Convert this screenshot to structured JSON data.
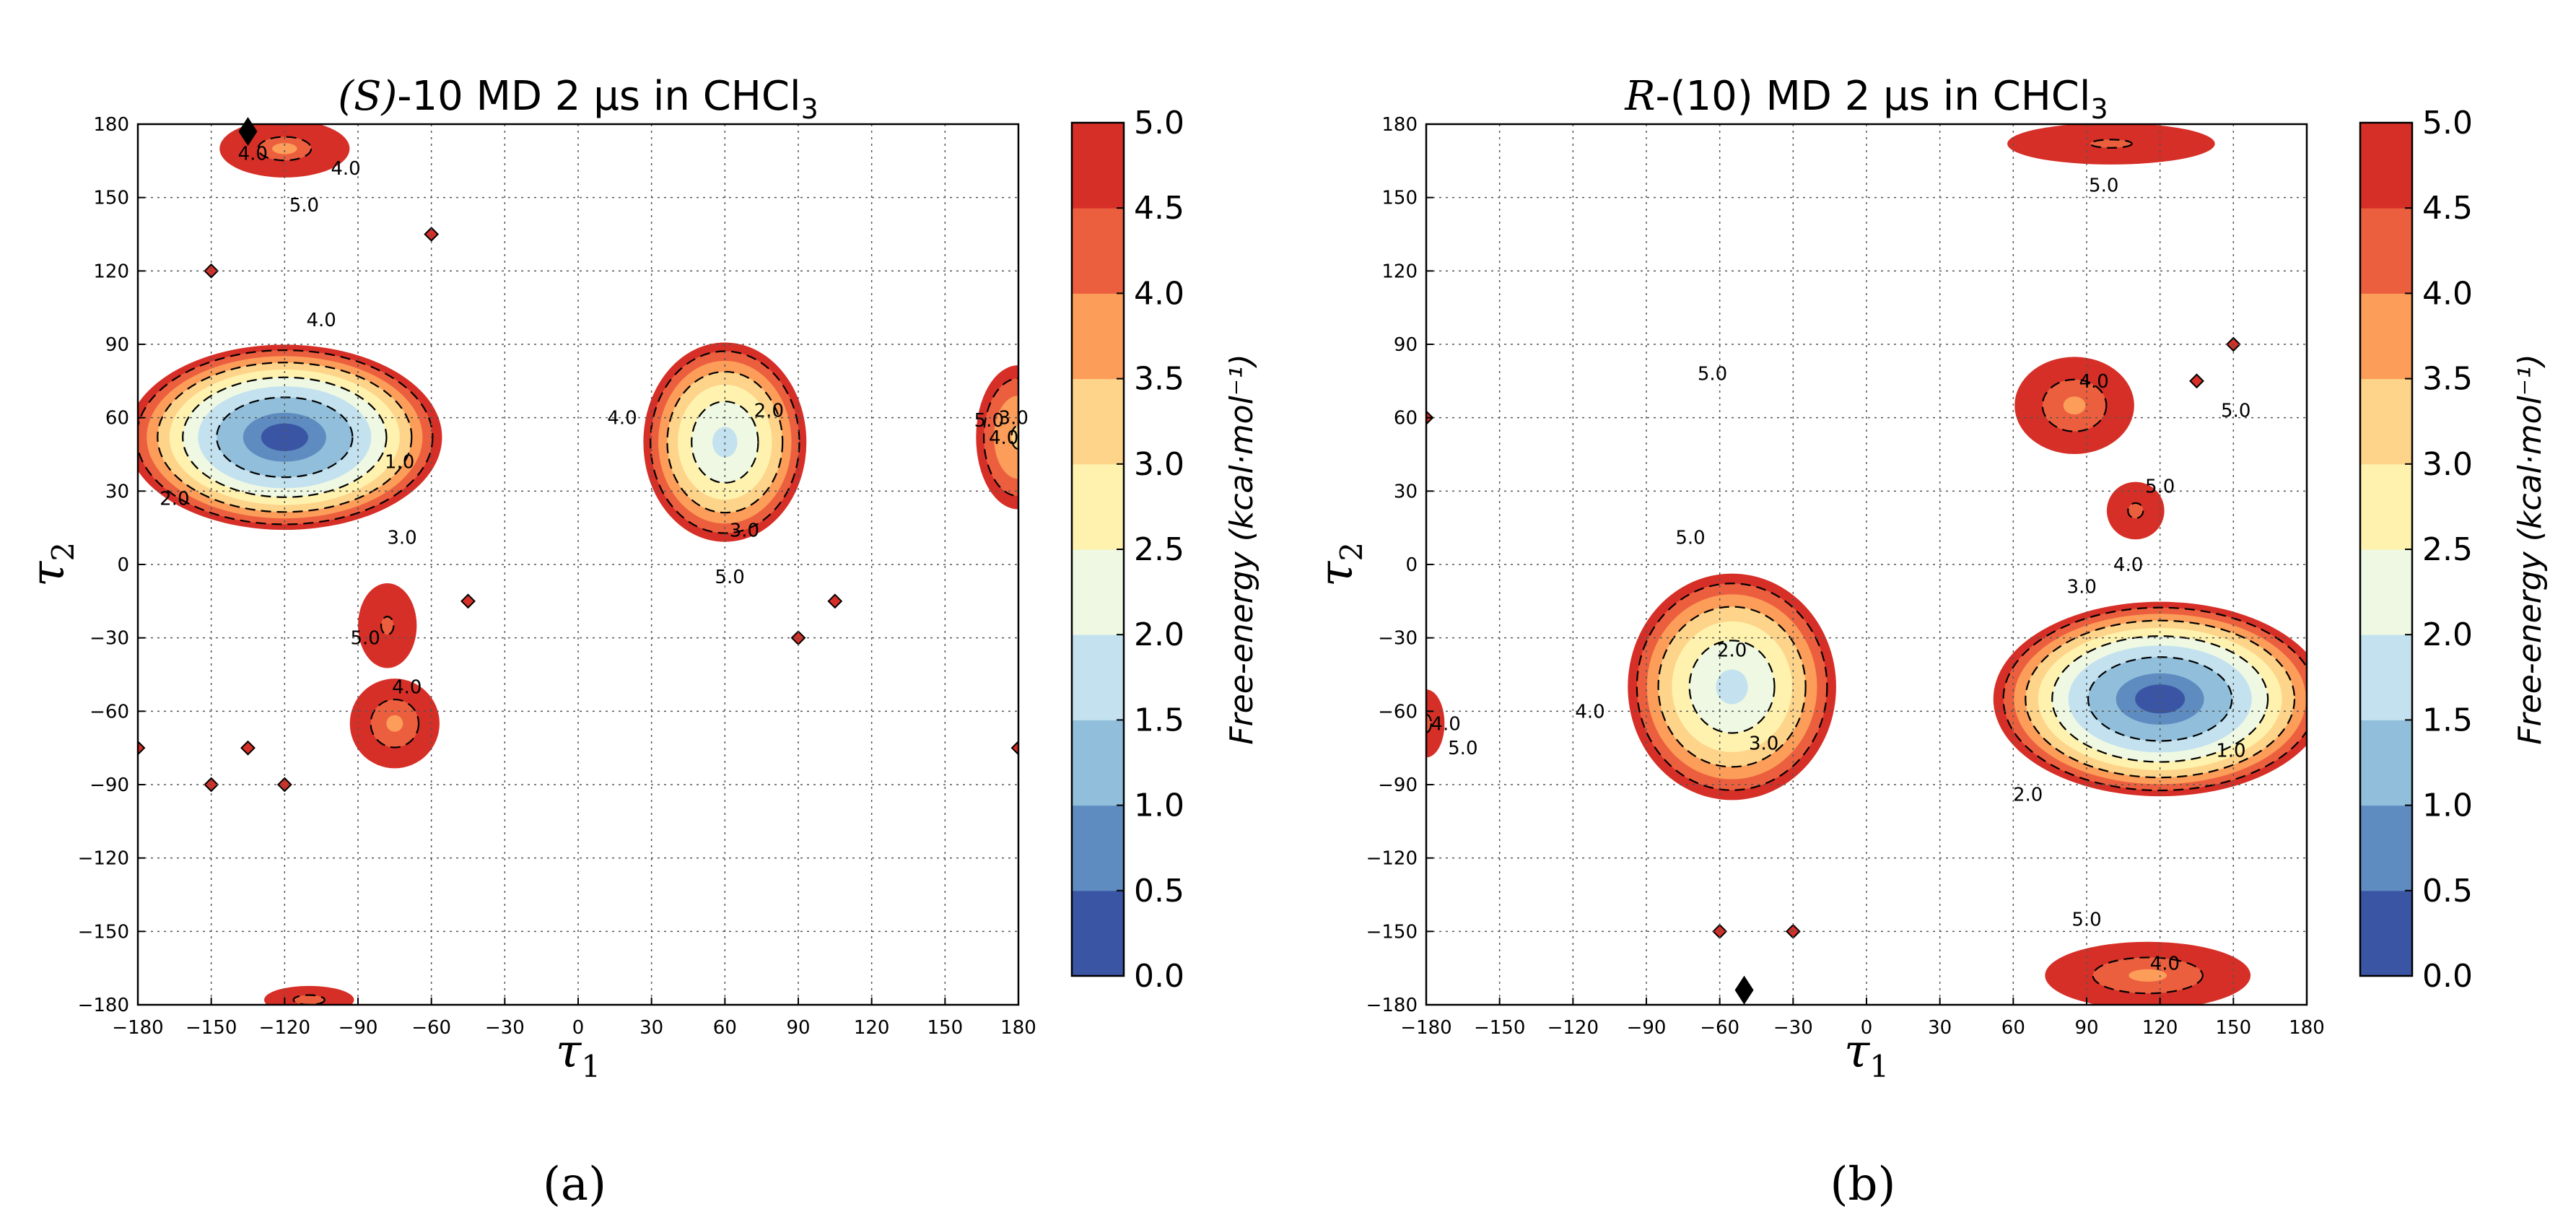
{
  "chart_data": [
    {
      "type": "heatmap",
      "subtype": "filled-contour",
      "panel_label": "(a)",
      "title": "(S)-10 MD 2 μs in CHCl3",
      "title_parts": {
        "prefix_italic": "(S)",
        "rest": "-10 MD 2 μs in CHCl",
        "subscript": "3"
      },
      "xlabel": "τ1",
      "ylabel": "τ2",
      "xlim": [
        -180,
        180
      ],
      "ylim": [
        -180,
        180
      ],
      "xticks": [
        -180,
        -150,
        -120,
        -90,
        -60,
        -30,
        0,
        30,
        60,
        90,
        120,
        150,
        180
      ],
      "yticks": [
        -180,
        -150,
        -120,
        -90,
        -60,
        -30,
        0,
        30,
        60,
        90,
        120,
        150,
        180
      ],
      "grid": true,
      "colorbar": {
        "label": "Free-energy (kcal·mol⁻¹)",
        "levels": [
          0.0,
          0.5,
          1.0,
          1.5,
          2.0,
          2.5,
          3.0,
          3.5,
          4.0,
          4.5,
          5.0
        ],
        "tick_labels": [
          "0.0",
          "0.5",
          "1.0",
          "1.5",
          "2.0",
          "2.5",
          "3.0",
          "3.5",
          "4.0",
          "4.5",
          "5.0"
        ],
        "colors": [
          "#3a55a4",
          "#5e8cc0",
          "#91bfdb",
          "#c3e1ee",
          "#eef8e3",
          "#fff2ae",
          "#fdd48a",
          "#fc9d59",
          "#ec5f3e",
          "#d62f27"
        ]
      },
      "basins": [
        {
          "name": "global minimum",
          "center": [
            -120,
            52
          ],
          "rx": 68,
          "ry": 40,
          "min_energy": 0.2
        },
        {
          "name": "upper-left band",
          "center": [
            -120,
            170
          ],
          "rx": 36,
          "ry": 16,
          "min_energy": 3.9
        },
        {
          "name": "bottom-left band",
          "center": [
            -110,
            -178
          ],
          "rx": 45,
          "ry": 14,
          "min_energy": 4.4
        },
        {
          "name": "neck",
          "center": [
            -78,
            -25
          ],
          "rx": 18,
          "ry": 26,
          "min_energy": 4.1
        },
        {
          "name": "lower lobe",
          "center": [
            -75,
            -65
          ],
          "rx": 24,
          "ry": 24,
          "min_energy": 3.8
        },
        {
          "name": "right basin",
          "center": [
            60,
            50
          ],
          "rx": 36,
          "ry": 44,
          "min_energy": 1.5
        },
        {
          "name": "right edge",
          "center": [
            180,
            52
          ],
          "rx": 20,
          "ry": 34,
          "min_energy": 3.0
        }
      ],
      "contour_labels": [
        {
          "text": "4.0",
          "at": [
            -133,
            168
          ]
        },
        {
          "text": "4.0",
          "at": [
            -95,
            162
          ]
        },
        {
          "text": "5.0",
          "at": [
            -112,
            147
          ]
        },
        {
          "text": "4.0",
          "at": [
            -105,
            100
          ]
        },
        {
          "text": "1.0",
          "at": [
            -73,
            42
          ]
        },
        {
          "text": "2.0",
          "at": [
            -165,
            27
          ]
        },
        {
          "text": "3.0",
          "at": [
            -72,
            11
          ]
        },
        {
          "text": "5.0",
          "at": [
            -87,
            -30
          ]
        },
        {
          "text": "4.0",
          "at": [
            -70,
            -50
          ]
        },
        {
          "text": "4.0",
          "at": [
            18,
            60
          ]
        },
        {
          "text": "2.0",
          "at": [
            78,
            63
          ]
        },
        {
          "text": "3.0",
          "at": [
            68,
            14
          ]
        },
        {
          "text": "5.0",
          "at": [
            62,
            -5
          ]
        },
        {
          "text": "5.0",
          "at": [
            168,
            59
          ]
        },
        {
          "text": "3.0",
          "at": [
            178,
            60
          ]
        },
        {
          "text": "4.0",
          "at": [
            174,
            52
          ]
        }
      ],
      "marker": {
        "shape": "diamond",
        "at": [
          -135,
          177
        ]
      },
      "isolated_points": [
        [
          -60,
          135
        ],
        [
          -150,
          120
        ],
        [
          -45,
          -15
        ],
        [
          105,
          -15
        ],
        [
          90,
          -30
        ],
        [
          -135,
          -75
        ],
        [
          -150,
          -90
        ],
        [
          -120,
          -90
        ],
        [
          -180,
          -75
        ],
        [
          180,
          -75
        ]
      ]
    },
    {
      "type": "heatmap",
      "subtype": "filled-contour",
      "panel_label": "(b)",
      "title": "R-(10) MD 2 μs in CHCl3",
      "title_parts": {
        "prefix_italic": "R",
        "rest": "-(10) MD 2 μs in CHCl",
        "subscript": "3"
      },
      "xlabel": "τ1",
      "ylabel": "τ2",
      "xlim": [
        -180,
        180
      ],
      "ylim": [
        -180,
        180
      ],
      "xticks": [
        -180,
        -150,
        -120,
        -90,
        -60,
        -30,
        0,
        30,
        60,
        90,
        120,
        150,
        180
      ],
      "yticks": [
        -180,
        -150,
        -120,
        -90,
        -60,
        -30,
        0,
        30,
        60,
        90,
        120,
        150,
        180
      ],
      "grid": true,
      "colorbar": {
        "label": "Free-energy (kcal·mol⁻¹)",
        "levels": [
          0.0,
          0.5,
          1.0,
          1.5,
          2.0,
          2.5,
          3.0,
          3.5,
          4.0,
          4.5,
          5.0
        ],
        "tick_labels": [
          "0.0",
          "0.5",
          "1.0",
          "1.5",
          "2.0",
          "2.5",
          "3.0",
          "3.5",
          "4.0",
          "4.5",
          "5.0"
        ],
        "colors": [
          "#3a55a4",
          "#5e8cc0",
          "#91bfdb",
          "#c3e1ee",
          "#eef8e3",
          "#fff2ae",
          "#fdd48a",
          "#fc9d59",
          "#ec5f3e",
          "#d62f27"
        ]
      },
      "basins": [
        {
          "name": "global minimum",
          "center": [
            120,
            -55
          ],
          "rx": 72,
          "ry": 42,
          "min_energy": 0.2
        },
        {
          "name": "left basin",
          "center": [
            -55,
            -50
          ],
          "rx": 46,
          "ry": 50,
          "min_energy": 1.5
        },
        {
          "name": "upper-right lobe",
          "center": [
            85,
            65
          ],
          "rx": 32,
          "ry": 26,
          "min_energy": 3.8
        },
        {
          "name": "bridge",
          "center": [
            110,
            22
          ],
          "rx": 22,
          "ry": 22,
          "min_energy": 4.3
        },
        {
          "name": "top band",
          "center": [
            100,
            172
          ],
          "rx": 60,
          "ry": 12,
          "min_energy": 4.0
        },
        {
          "name": "bottom band",
          "center": [
            115,
            -168
          ],
          "rx": 55,
          "ry": 18,
          "min_energy": 3.8
        },
        {
          "name": "left edge",
          "center": [
            -180,
            -65
          ],
          "rx": 14,
          "ry": 26,
          "min_energy": 4.3
        }
      ],
      "contour_labels": [
        {
          "text": "5.0",
          "at": [
            97,
            155
          ]
        },
        {
          "text": "5.0",
          "at": [
            -63,
            78
          ]
        },
        {
          "text": "4.0",
          "at": [
            93,
            75
          ]
        },
        {
          "text": "5.0",
          "at": [
            151,
            63
          ]
        },
        {
          "text": "5.0",
          "at": [
            120,
            32
          ]
        },
        {
          "text": "5.0",
          "at": [
            -72,
            11
          ]
        },
        {
          "text": "4.0",
          "at": [
            107,
            0
          ]
        },
        {
          "text": "3.0",
          "at": [
            88,
            -9
          ]
        },
        {
          "text": "2.0",
          "at": [
            -55,
            -35
          ]
        },
        {
          "text": "4.0",
          "at": [
            -113,
            -60
          ]
        },
        {
          "text": "3.0",
          "at": [
            -42,
            -73
          ]
        },
        {
          "text": "1.0",
          "at": [
            149,
            -76
          ]
        },
        {
          "text": "2.0",
          "at": [
            66,
            -94
          ]
        },
        {
          "text": "4.0",
          "at": [
            -172,
            -65
          ]
        },
        {
          "text": "5.0",
          "at": [
            -165,
            -75
          ]
        },
        {
          "text": "5.0",
          "at": [
            90,
            -145
          ]
        },
        {
          "text": "4.0",
          "at": [
            122,
            -163
          ]
        }
      ],
      "marker": {
        "shape": "diamond",
        "at": [
          -50,
          -174
        ]
      },
      "isolated_points": [
        [
          -180,
          60
        ],
        [
          150,
          90
        ],
        [
          135,
          75
        ],
        [
          -60,
          -150
        ],
        [
          -30,
          -150
        ]
      ]
    }
  ],
  "colorbar_tick_labels": [
    "0.0",
    "0.5",
    "1.0",
    "1.5",
    "2.0",
    "2.5",
    "3.0",
    "3.5",
    "4.0",
    "4.5",
    "5.0"
  ]
}
